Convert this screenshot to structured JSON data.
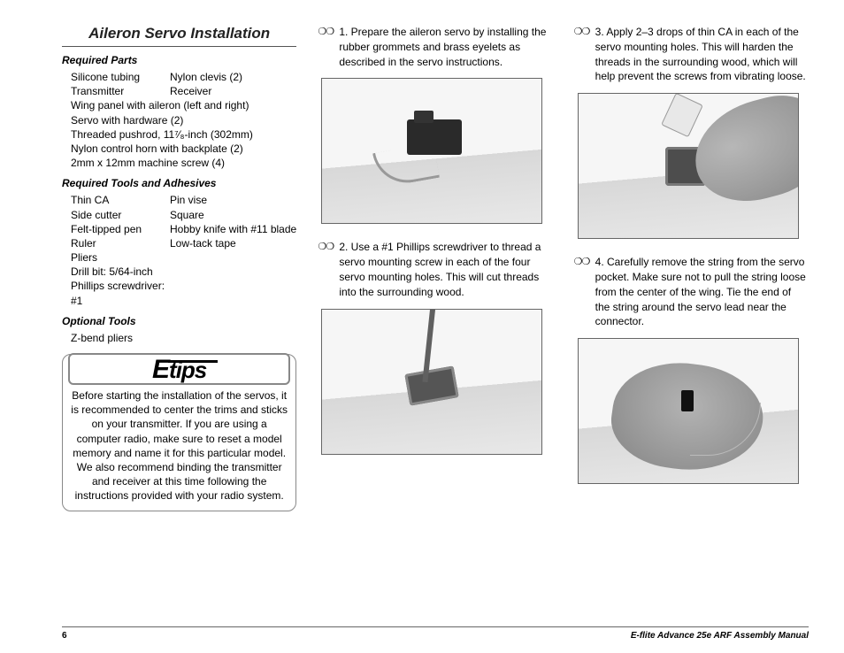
{
  "section_title": "Aileron Servo Installation",
  "subheads": {
    "parts": "Required Parts",
    "tools": "Required Tools and Adhesives",
    "optional": "Optional Tools"
  },
  "parts": {
    "col1": [
      "Silicone tubing",
      "Transmitter"
    ],
    "col2": [
      "Nylon clevis (2)",
      "Receiver"
    ],
    "full": [
      "Wing panel with aileron (left and right)",
      "Servo with hardware (2)",
      "Threaded pushrod, 11⁷⁄₈-inch (302mm)",
      "Nylon control horn with backplate (2)",
      "2mm x 12mm machine screw (4)"
    ]
  },
  "tools": {
    "col1": [
      "Thin CA",
      "Side cutter",
      "Felt-tipped pen",
      "Ruler",
      "Pliers",
      "Drill bit: 5/64-inch",
      "Phillips screwdriver: #1"
    ],
    "col2": [
      "Pin vise",
      "Square",
      "Hobby knife with #11 blade",
      "Low-tack tape"
    ]
  },
  "optional": [
    "Z-bend pliers"
  ],
  "tip_logo_e": "E",
  "tip_logo_rest": "tips",
  "tip_text": "Before starting the installation of the servos, it is recommended to center the trims and sticks on your transmitter. If you are using a computer radio, make sure to reset a model memory and name it for this particular model. We also recommend binding the transmitter and receiver at this time following the instructions provided with your radio system.",
  "steps": {
    "s1": "1. Prepare the aileron servo by installing the rubber grommets and brass eyelets as described in the servo instructions.",
    "s2": "2. Use a #1 Phillips screwdriver to thread a servo mounting screw in each of the four servo mounting holes. This will cut threads into the surrounding wood.",
    "s3": "3. Apply 2–3 drops of thin CA in each of the servo mounting holes. This will harden the threads in the surrounding wood, which will help prevent the screws from vibrating loose.",
    "s4": "4. Carefully remove the string from the servo pocket. Make sure not to pull the string loose from the center of the wing. Tie the end of the string around the servo lead near the connector."
  },
  "check_glyph": "❍❍",
  "footer": {
    "page": "6",
    "manual": "E-flite Advance 25e ARF Assembly Manual"
  }
}
